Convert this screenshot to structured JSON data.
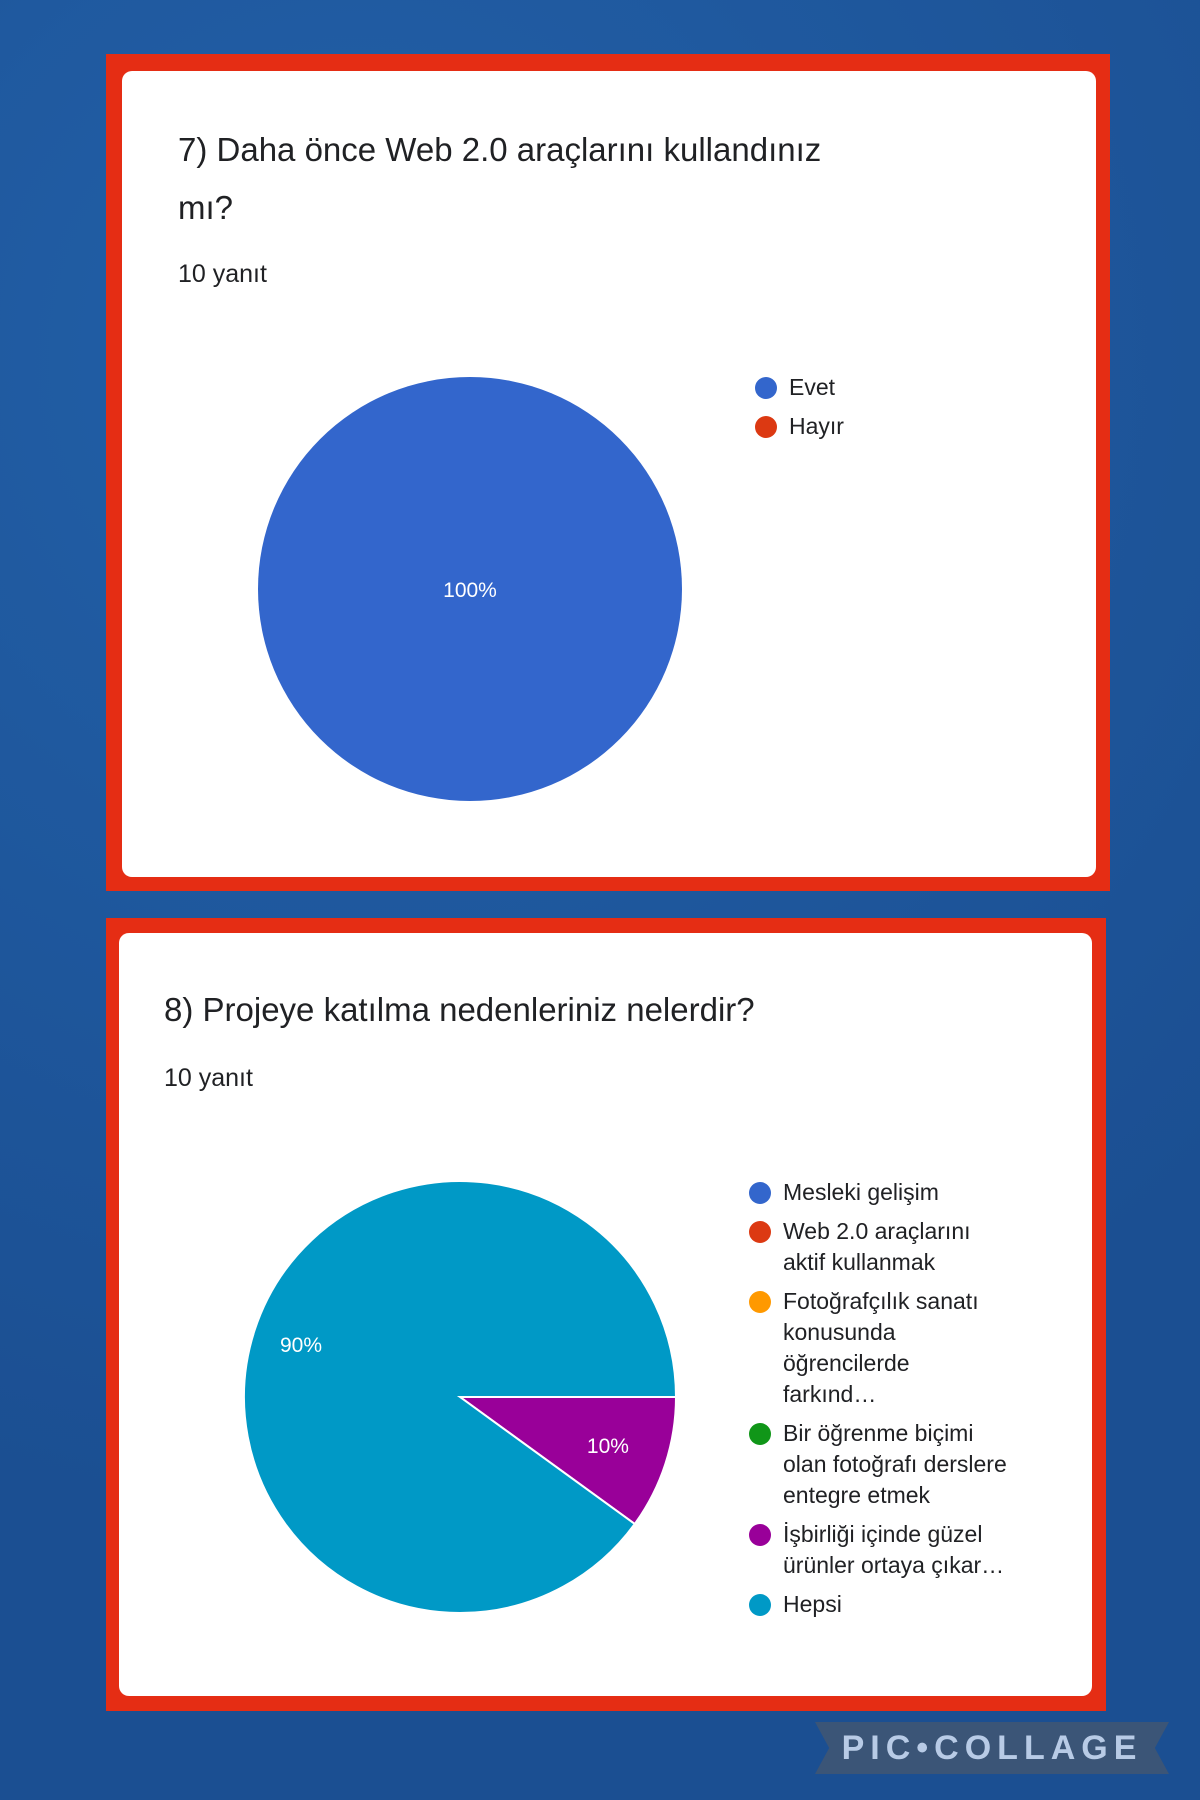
{
  "q7": {
    "title_line1": "7) Daha önce Web 2.0 araçlarını kullandınız",
    "title_line2": "mı?",
    "responses": "10 yanıt"
  },
  "q8": {
    "title": "8) Projeye katılma nedenleriniz nelerdir?",
    "responses": "10 yanıt"
  },
  "chart_data": [
    {
      "type": "pie",
      "title": "7) Daha önce Web 2.0 araçlarını kullandınız mı?",
      "categories": [
        "Evet",
        "Hayır"
      ],
      "values": [
        100,
        0
      ],
      "colors": [
        "#3366cc",
        "#dc3912"
      ],
      "labels": [
        "100%",
        ""
      ],
      "legend": "right"
    },
    {
      "type": "pie",
      "title": "8) Projeye katılma nedenleriniz nelerdir?",
      "categories": [
        "Mesleki gelişim",
        "Web 2.0 araçlarını aktif kullanmak",
        "Fotoğrafçılık sanatı konusunda öğrencilerde farkınd…",
        "Bir öğrenme biçimi olan fotoğrafı derslere entegre etmek",
        "İşbirliği içinde güzel ürünler ortaya çıkar…",
        "Hepsi"
      ],
      "values": [
        0,
        0,
        0,
        0,
        10,
        90
      ],
      "colors": [
        "#3366cc",
        "#dc3912",
        "#ff9900",
        "#109618",
        "#990099",
        "#0099c6"
      ],
      "labels": [
        "",
        "",
        "",
        "",
        "10%",
        "90%"
      ],
      "legend": "right"
    }
  ],
  "watermark": "PIC•COLLAGE"
}
